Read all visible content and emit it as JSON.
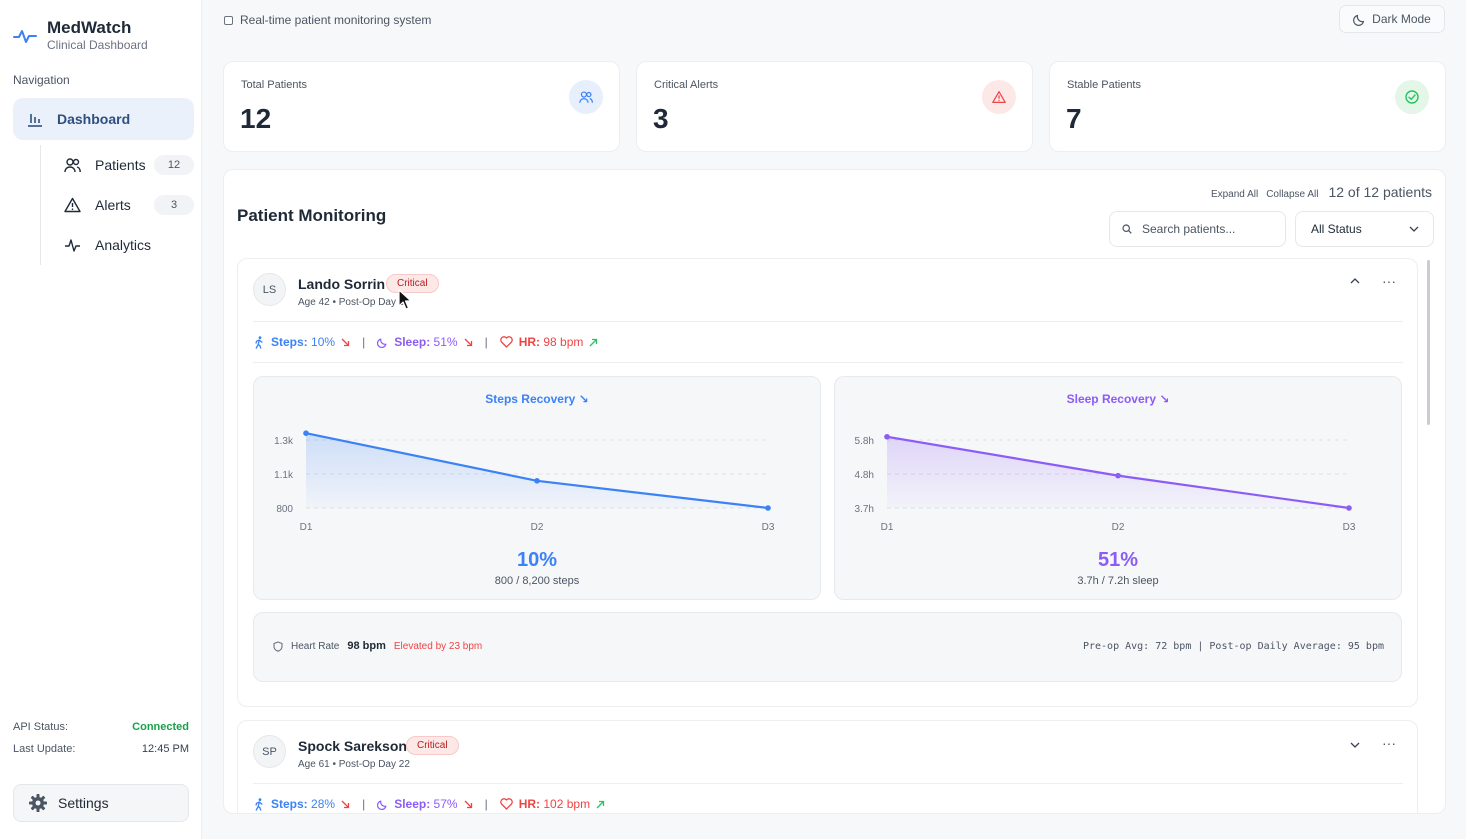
{
  "brand": {
    "title": "MedWatch",
    "subtitle": "Clinical Dashboard",
    "logo_icon": "pulse-icon"
  },
  "nav": {
    "label": "Navigation",
    "dashboard": "Dashboard",
    "items": [
      {
        "label": "Patients",
        "badge": "12",
        "icon": "users-icon"
      },
      {
        "label": "Alerts",
        "badge": "3",
        "icon": "warning-icon"
      },
      {
        "label": "Analytics",
        "icon": "activity-icon"
      }
    ]
  },
  "status": {
    "api_label": "API Status:",
    "api_value": "Connected",
    "update_label": "Last Update:",
    "update_value": "12:45 PM"
  },
  "settings": {
    "label": "Settings"
  },
  "topbar": {
    "checkbox_label": "Real-time patient monitoring system",
    "dark_mode": "Dark Mode"
  },
  "stats": [
    {
      "label": "Total Patients",
      "value": "12",
      "color": "#3b82f6"
    },
    {
      "label": "Critical Alerts",
      "value": "3",
      "color": "#ef4444"
    },
    {
      "label": "Stable Patients",
      "value": "7",
      "color": "#22c55e"
    }
  ],
  "monitoring": {
    "title": "Patient Monitoring",
    "expand_all": "Expand All",
    "collapse_all": "Collapse All",
    "count": "12 of 12 patients",
    "search_placeholder": "Search patients...",
    "status_filter": "All Status"
  },
  "patients": [
    {
      "initials": "LS",
      "name": "Lando Sorrin",
      "status": "Critical",
      "meta": "Age 42 • Post-Op Day 3",
      "steps_label": "Steps:",
      "steps_value": "10%",
      "sleep_label": "Sleep:",
      "sleep_value": "51%",
      "hr_label": "HR:",
      "hr_value": "98 bpm",
      "steps_chart": {
        "title": "Steps Recovery ↘",
        "x": [
          "D1",
          "D2",
          "D3"
        ],
        "yticks": [
          "1.3k",
          "1.1k",
          "800"
        ],
        "values": [
          1350,
          1000,
          800
        ],
        "ylim": [
          800,
          1300
        ],
        "pct": "10%",
        "sub": "800 / 8,200 steps",
        "color": "#3b82f6"
      },
      "sleep_chart": {
        "title": "Sleep Recovery ↘",
        "x": [
          "D1",
          "D2",
          "D3"
        ],
        "yticks": [
          "5.8h",
          "4.8h",
          "3.7h"
        ],
        "values": [
          5.9,
          4.7,
          3.7
        ],
        "ylim": [
          3.7,
          5.8
        ],
        "pct": "51%",
        "sub": "3.7h / 7.2h sleep",
        "color": "#8b5cf6"
      },
      "heart": {
        "label": "Heart Rate",
        "value": "98 bpm",
        "note": "Elevated by 23 bpm",
        "averages": "Pre-op Avg: 72 bpm | Post-op Daily Average: 95 bpm"
      }
    },
    {
      "initials": "SP",
      "name": "Spock Sarekson",
      "status": "Critical",
      "meta": "Age 61 • Post-Op Day 22",
      "steps_label": "Steps:",
      "steps_value": "28%",
      "sleep_label": "Sleep:",
      "sleep_value": "57%",
      "hr_label": "HR:",
      "hr_value": "102 bpm"
    }
  ]
}
